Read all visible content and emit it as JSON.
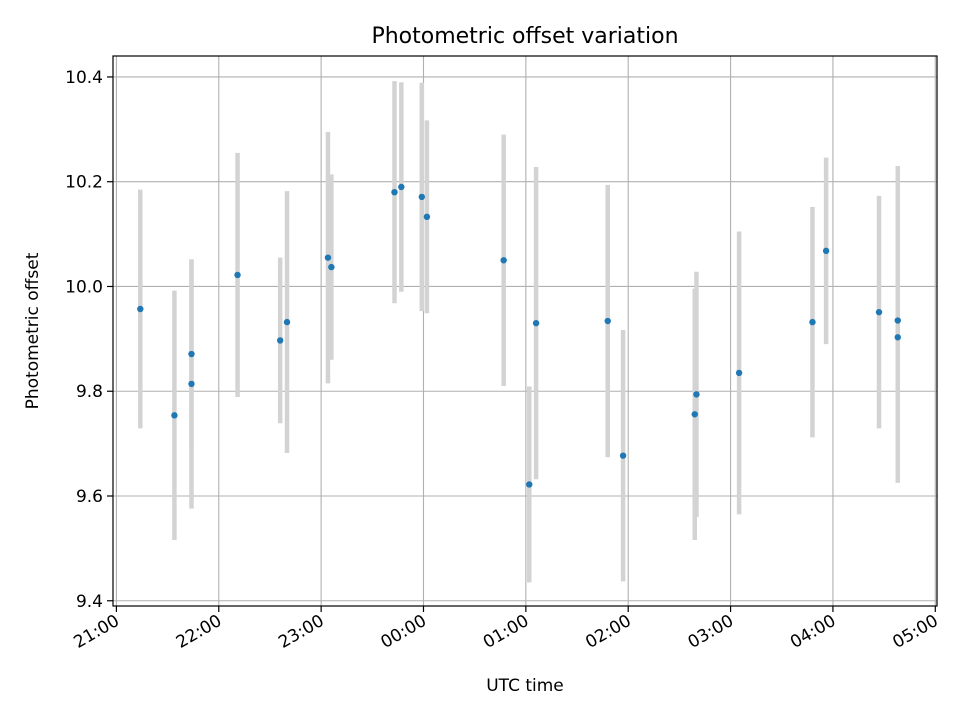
{
  "chart_data": {
    "type": "scatter",
    "title": "Photometric offset variation",
    "xlabel": "UTC time",
    "ylabel": "Photometric offset",
    "xlim": [
      "2000-01-01T20:58",
      "2000-01-02T05:01"
    ],
    "ylim": [
      9.39,
      10.44
    ],
    "xticks": [
      {
        "t": "2000-01-01T21:00",
        "label": "21:00"
      },
      {
        "t": "2000-01-01T22:00",
        "label": "22:00"
      },
      {
        "t": "2000-01-01T23:00",
        "label": "23:00"
      },
      {
        "t": "2000-01-02T00:00",
        "label": "00:00"
      },
      {
        "t": "2000-01-02T01:00",
        "label": "01:00"
      },
      {
        "t": "2000-01-02T02:00",
        "label": "02:00"
      },
      {
        "t": "2000-01-02T03:00",
        "label": "03:00"
      },
      {
        "t": "2000-01-02T04:00",
        "label": "04:00"
      },
      {
        "t": "2000-01-02T05:00",
        "label": "05:00"
      }
    ],
    "yticks": [
      {
        "v": 9.4,
        "label": "9.4"
      },
      {
        "v": 9.6,
        "label": "9.6"
      },
      {
        "v": 9.8,
        "label": "9.8"
      },
      {
        "v": 10.0,
        "label": "10.0"
      },
      {
        "v": 10.2,
        "label": "10.2"
      },
      {
        "v": 10.4,
        "label": "10.4"
      }
    ],
    "grid": true,
    "colors": {
      "points": "#1f77b4",
      "errorbars": "#d3d3d3",
      "grid": "#b0b0b0"
    },
    "points": [
      {
        "t": "2000-01-01T21:14",
        "y": 9.957,
        "err": 0.228
      },
      {
        "t": "2000-01-01T21:34",
        "y": 9.754,
        "err": 0.238
      },
      {
        "t": "2000-01-01T21:44",
        "y": 9.871,
        "err": 0.18
      },
      {
        "t": "2000-01-01T21:44",
        "y": 9.814,
        "err": 0.238
      },
      {
        "t": "2000-01-01T22:11",
        "y": 10.022,
        "err": 0.233
      },
      {
        "t": "2000-01-01T22:36",
        "y": 9.897,
        "err": 0.158
      },
      {
        "t": "2000-01-01T22:40",
        "y": 9.932,
        "err": 0.25
      },
      {
        "t": "2000-01-01T23:04",
        "y": 10.055,
        "err": 0.24
      },
      {
        "t": "2000-01-01T23:06",
        "y": 10.037,
        "err": 0.177
      },
      {
        "t": "2000-01-01T23:43",
        "y": 10.18,
        "err": 0.212
      },
      {
        "t": "2000-01-01T23:47",
        "y": 10.19,
        "err": 0.2
      },
      {
        "t": "2000-01-01T23:59",
        "y": 10.171,
        "err": 0.218
      },
      {
        "t": "2000-01-02T00:02",
        "y": 10.133,
        "err": 0.184
      },
      {
        "t": "2000-01-02T00:47",
        "y": 10.05,
        "err": 0.24
      },
      {
        "t": "2000-01-02T01:02",
        "y": 9.622,
        "err": 0.187
      },
      {
        "t": "2000-01-02T01:06",
        "y": 9.93,
        "err": 0.298
      },
      {
        "t": "2000-01-02T01:48",
        "y": 9.934,
        "err": 0.26
      },
      {
        "t": "2000-01-02T01:57",
        "y": 9.677,
        "err": 0.24
      },
      {
        "t": "2000-01-02T02:39",
        "y": 9.756,
        "err": 0.24
      },
      {
        "t": "2000-01-02T02:40",
        "y": 9.794,
        "err": 0.234
      },
      {
        "t": "2000-01-02T03:05",
        "y": 9.835,
        "err": 0.27
      },
      {
        "t": "2000-01-02T03:48",
        "y": 9.932,
        "err": 0.22
      },
      {
        "t": "2000-01-02T03:56",
        "y": 10.068,
        "err": 0.178
      },
      {
        "t": "2000-01-02T04:27",
        "y": 9.951,
        "err": 0.222
      },
      {
        "t": "2000-01-02T04:38",
        "y": 9.935,
        "err": 0.295
      },
      {
        "t": "2000-01-02T04:38",
        "y": 9.903,
        "err": 0.278
      }
    ]
  }
}
